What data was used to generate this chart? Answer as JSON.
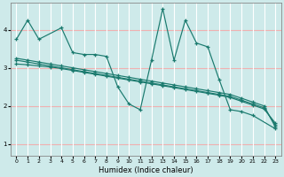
{
  "xlabel": "Humidex (Indice chaleur)",
  "bg_color": "#ceeaea",
  "grid_color_h": "#f0b0b0",
  "grid_color_v": "#ffffff",
  "line_color": "#1a7a6e",
  "xlim": [
    -0.5,
    23.5
  ],
  "ylim": [
    0.7,
    4.7
  ],
  "yticks": [
    1,
    2,
    3,
    4
  ],
  "xticks": [
    0,
    1,
    2,
    3,
    4,
    5,
    6,
    7,
    8,
    9,
    10,
    11,
    12,
    13,
    14,
    15,
    16,
    17,
    18,
    19,
    20,
    21,
    22,
    23
  ],
  "series1_x": [
    0,
    1,
    2,
    4,
    5,
    6,
    7,
    8,
    9,
    10,
    11,
    12,
    13,
    14,
    15,
    16,
    17,
    18,
    19,
    20,
    21,
    23
  ],
  "series1_y": [
    3.75,
    4.25,
    3.75,
    4.05,
    3.4,
    3.35,
    3.35,
    3.3,
    2.5,
    2.05,
    1.9,
    3.2,
    4.55,
    3.2,
    4.25,
    3.65,
    3.55,
    2.7,
    1.9,
    1.85,
    1.75,
    1.4
  ],
  "series2_x": [
    0,
    1,
    2,
    3,
    4,
    5,
    6,
    7,
    8,
    9,
    10,
    11,
    12,
    13,
    14,
    15,
    16,
    17,
    18,
    19,
    20,
    21,
    22,
    23
  ],
  "series2_y": [
    3.25,
    3.2,
    3.15,
    3.1,
    3.05,
    3.0,
    2.95,
    2.9,
    2.85,
    2.8,
    2.75,
    2.7,
    2.65,
    2.6,
    2.55,
    2.5,
    2.45,
    2.4,
    2.35,
    2.3,
    2.2,
    2.1,
    2.0,
    1.45
  ],
  "series3_x": [
    0,
    1,
    2,
    3,
    4,
    5,
    6,
    7,
    8,
    9,
    10,
    11,
    12,
    13,
    14,
    15,
    16,
    17,
    18,
    19,
    20,
    21,
    22,
    23
  ],
  "series3_y": [
    3.2,
    3.15,
    3.1,
    3.05,
    3.0,
    2.95,
    2.9,
    2.85,
    2.8,
    2.75,
    2.7,
    2.65,
    2.6,
    2.55,
    2.5,
    2.45,
    2.4,
    2.35,
    2.3,
    2.25,
    2.15,
    2.05,
    1.95,
    1.5
  ],
  "series4_x": [
    0,
    1,
    2,
    3,
    4,
    5,
    6,
    7,
    8,
    9,
    10,
    11,
    12,
    13,
    14,
    15,
    16,
    17,
    18,
    19,
    20,
    21,
    22,
    23
  ],
  "series4_y": [
    3.1,
    3.08,
    3.05,
    3.02,
    2.98,
    2.93,
    2.88,
    2.83,
    2.78,
    2.73,
    2.68,
    2.63,
    2.58,
    2.53,
    2.48,
    2.43,
    2.38,
    2.33,
    2.28,
    2.22,
    2.12,
    2.02,
    1.92,
    1.55
  ]
}
